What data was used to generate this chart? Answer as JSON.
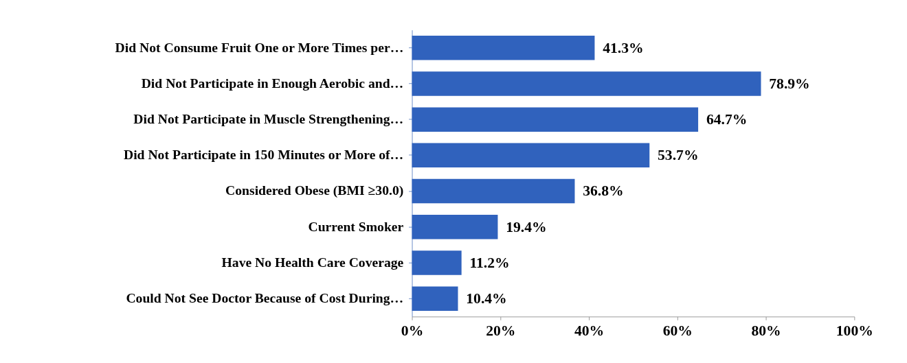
{
  "chart_data": {
    "type": "bar",
    "orientation": "horizontal",
    "categories": [
      "Did Not Consume Fruit One or More Times per…",
      "Did Not Participate in Enough Aerobic and…",
      "Did Not Participate in Muscle Strengthening…",
      "Did Not Participate in 150 Minutes or More of…",
      "Considered Obese (BMI ≥30.0)",
      "Current Smoker",
      "Have No Health Care Coverage",
      "Could Not See Doctor Because of Cost During…"
    ],
    "values": [
      41.3,
      78.9,
      64.7,
      53.7,
      36.8,
      19.4,
      11.2,
      10.4
    ],
    "value_labels": [
      "41.3%",
      "78.9%",
      "64.7%",
      "53.7%",
      "36.8%",
      "19.4%",
      "11.2%",
      "10.4%"
    ],
    "color": "#3062bd",
    "xlim": [
      0,
      100
    ],
    "xticks": [
      {
        "value": 0,
        "label": "0%"
      },
      {
        "value": 20,
        "label": "20%"
      },
      {
        "value": 40,
        "label": "40%"
      },
      {
        "value": 60,
        "label": "60%"
      },
      {
        "value": 80,
        "label": "80%"
      },
      {
        "value": 100,
        "label": "100%"
      }
    ],
    "grid": false
  }
}
